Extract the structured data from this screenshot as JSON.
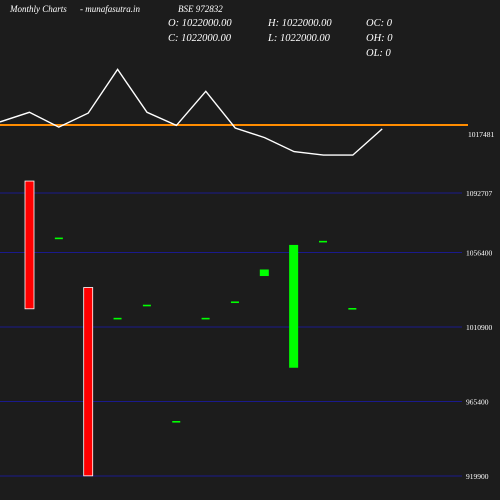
{
  "header": {
    "brand": "Monthly Charts",
    "site": "- munafasutra.in",
    "symbol": "BSE 972832"
  },
  "ohlc": {
    "open": "O: 1022000.00",
    "close": "C: 1022000.00",
    "high": "H: 1022000.00",
    "low": "L: 1022000.00",
    "oc": "OC: 0",
    "oh": "OH: 0",
    "ol": "OL: 0"
  },
  "colors": {
    "background": "#1c1c1c",
    "up": "#00ff00",
    "down": "#ff0000",
    "line": "#ffffff",
    "reference": "#ff8c00",
    "grid": "#1a1a8c"
  },
  "chart_data": [
    {
      "type": "line",
      "description": "upper indicator panel (values unlabeled, relative scale)",
      "values": [
        0.35,
        0.9,
        0.05,
        0.85,
        3.35,
        0.9,
        0.15,
        2.1,
        0.0,
        -0.55,
        -1.35,
        -1.55,
        -1.55,
        -0.05
      ],
      "reference_value": 0.17,
      "reference_label": "1017481"
    },
    {
      "type": "candlestick",
      "yticks": [
        1092707,
        1056400,
        1010900,
        965400,
        919900
      ],
      "candles": [
        {
          "open": 1100000,
          "close": 1022000,
          "color": "down"
        },
        {
          "open": 1065000,
          "close": 1065000,
          "color": "flat"
        },
        {
          "open": 1035000,
          "close": 920000,
          "color": "down"
        },
        {
          "open": 1016000,
          "close": 1016000,
          "color": "flat"
        },
        {
          "open": 1024000,
          "close": 1024000,
          "color": "flat"
        },
        {
          "open": 953000,
          "close": 953000,
          "color": "flat"
        },
        {
          "open": 1016000,
          "close": 1016000,
          "color": "flat"
        },
        {
          "open": 1026000,
          "close": 1026000,
          "color": "flat"
        },
        {
          "open": 1042000,
          "close": 1046000,
          "color": "up"
        },
        {
          "open": 986000,
          "close": 1061000,
          "color": "up"
        },
        {
          "open": 1063000,
          "close": 1063000,
          "color": "flat"
        },
        {
          "open": 1022000,
          "close": 1022000,
          "color": "flat"
        }
      ]
    }
  ]
}
